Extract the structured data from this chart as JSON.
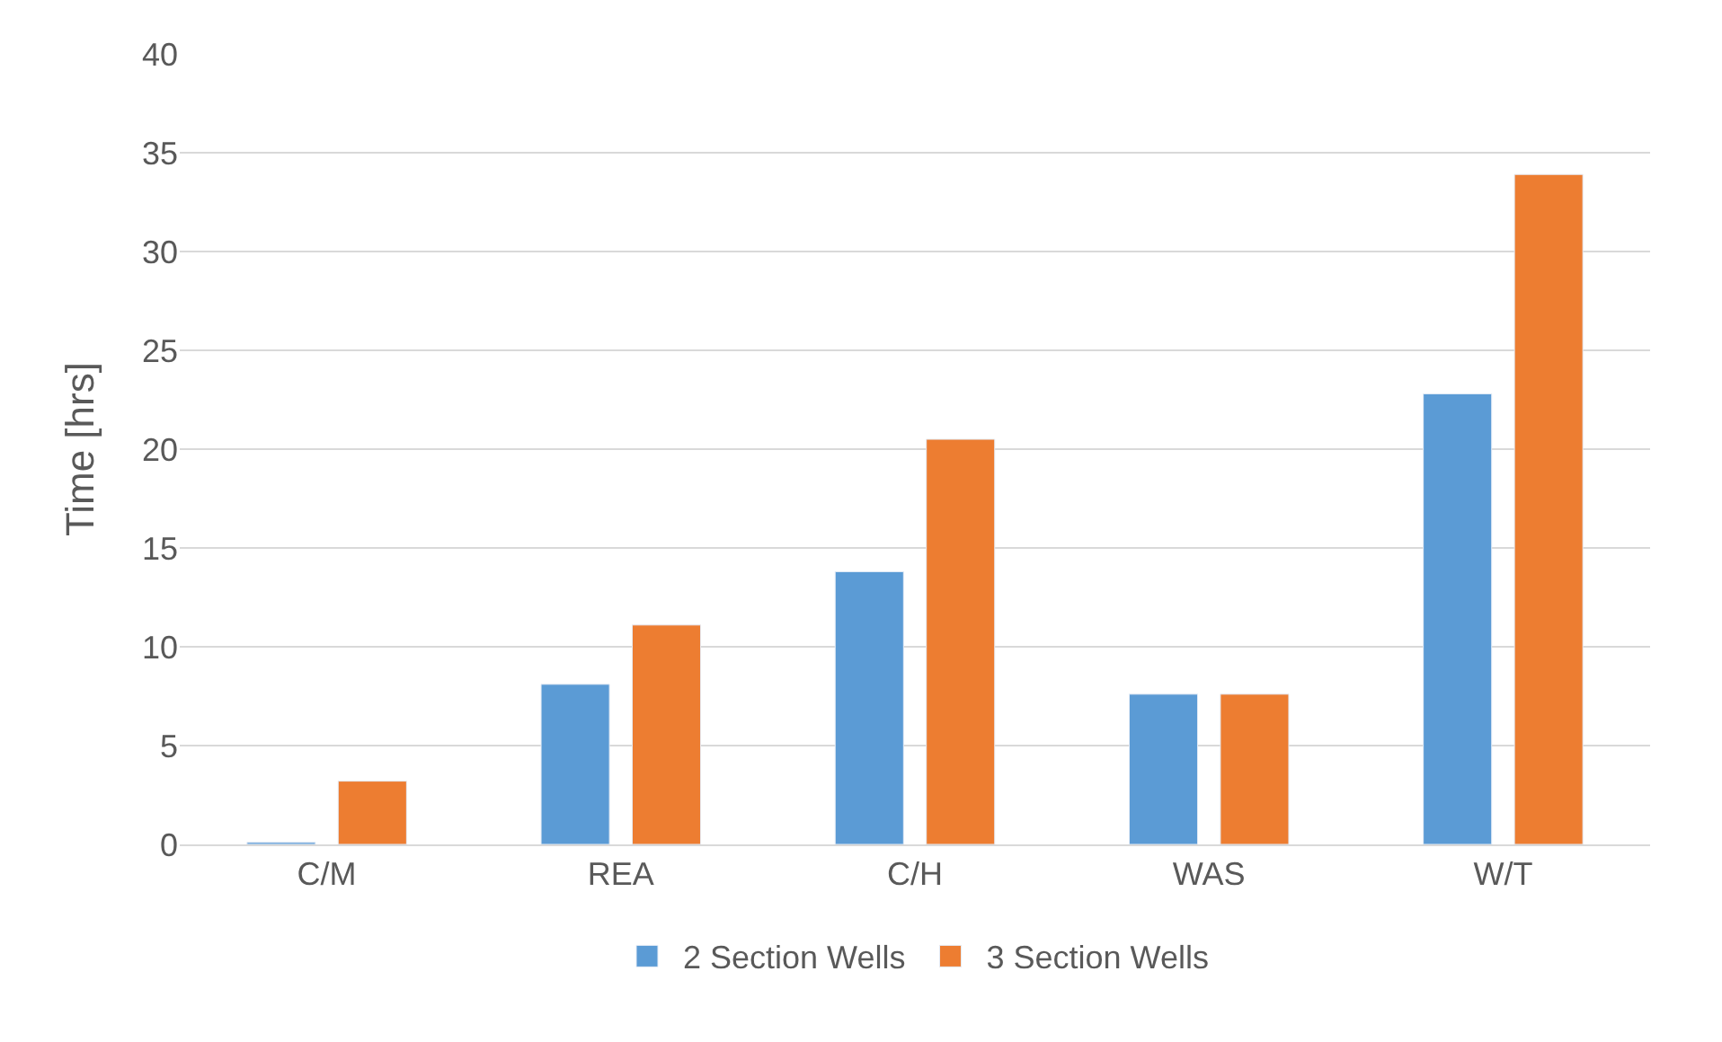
{
  "chart_data": {
    "type": "bar",
    "ylabel": "Time [hrs]",
    "categories": [
      "C/M",
      "REA",
      "C/H",
      "WAS",
      "W/T"
    ],
    "series": [
      {
        "name": "2 Section Wells",
        "color": "#5b9bd5",
        "values": [
          0.1,
          8.1,
          13.8,
          7.6,
          22.8
        ]
      },
      {
        "name": "3 Section Wells",
        "color": "#ed7d31",
        "values": [
          3.2,
          11.1,
          20.5,
          7.6,
          33.9
        ]
      }
    ],
    "ylim": [
      0,
      40
    ],
    "yticks": [
      0,
      5,
      10,
      15,
      20,
      25,
      30,
      35,
      40
    ],
    "grid": "y",
    "legend": "bottom"
  }
}
